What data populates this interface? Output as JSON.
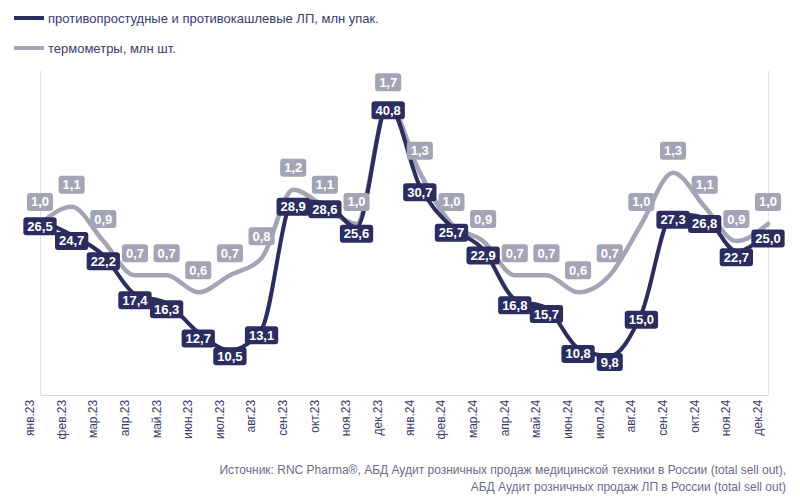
{
  "chart_data": {
    "type": "line",
    "categories": [
      "янв.23",
      "фев.23",
      "мар.23",
      "апр.23",
      "май.23",
      "июн.23",
      "июл.23",
      "авг.23",
      "сен.23",
      "окт.23",
      "ноя.23",
      "дек.23",
      "янв.24",
      "фев.24",
      "мар.24",
      "апр.24",
      "май.24",
      "июн.24",
      "июл.24",
      "авг.24",
      "сен.24",
      "окт.24",
      "ноя.24",
      "дек.24"
    ],
    "series": [
      {
        "name": "противопростудные и противокашлевые ЛП, млн упак.",
        "color": "#2b2d5e",
        "axis": "y",
        "values": [
          26.5,
          24.7,
          22.2,
          17.4,
          16.3,
          12.7,
          10.5,
          13.1,
          28.9,
          28.6,
          25.6,
          40.8,
          30.7,
          25.7,
          22.9,
          16.8,
          15.7,
          10.8,
          9.8,
          15.0,
          27.3,
          26.8,
          22.7,
          25.0
        ],
        "value_labels": [
          "26,5",
          "24,7",
          "22,2",
          "17,4",
          "16,3",
          "12,7",
          "10,5",
          "13,1",
          "28,9",
          "28,6",
          "25,6",
          "40,8",
          "30,7",
          "25,7",
          "22,9",
          "16,8",
          "15,7",
          "10,8",
          "9,8",
          "15,0",
          "27,3",
          "26,8",
          "22,7",
          "25,0"
        ]
      },
      {
        "name": "термометры, млн шт.",
        "color": "#a3a4b5",
        "axis": "y2",
        "values": [
          1.0,
          1.1,
          0.9,
          0.7,
          0.7,
          0.6,
          0.7,
          0.8,
          1.2,
          1.1,
          1.0,
          1.7,
          1.3,
          1.0,
          0.9,
          0.7,
          0.7,
          0.6,
          0.7,
          1.0,
          1.3,
          1.1,
          0.9,
          1.0
        ],
        "value_labels": [
          "1,0",
          "1,1",
          "0,9",
          "0,7",
          "0,7",
          "0,6",
          "0,7",
          "0,8",
          "1,2",
          "1,1",
          "1,0",
          "1,7",
          "1,3",
          "1,0",
          "0,9",
          "0,7",
          "0,7",
          "0,6",
          "0,7",
          "1,0",
          "1,3",
          "1,1",
          "0,9",
          "1,0"
        ]
      }
    ],
    "ylim": [
      5,
      45
    ],
    "y2lim": [
      0,
      1.9
    ],
    "tick_labels": "x",
    "data_labels": true,
    "line_style": "smooth",
    "legend": "top-left",
    "grid": false,
    "source": [
      "Источник: RNC Pharma®, АБД Аудит розничных продаж медицинской техники в России (total sell out),",
      "АБД Аудит розничных продаж ЛП в России (total sell out)"
    ]
  }
}
